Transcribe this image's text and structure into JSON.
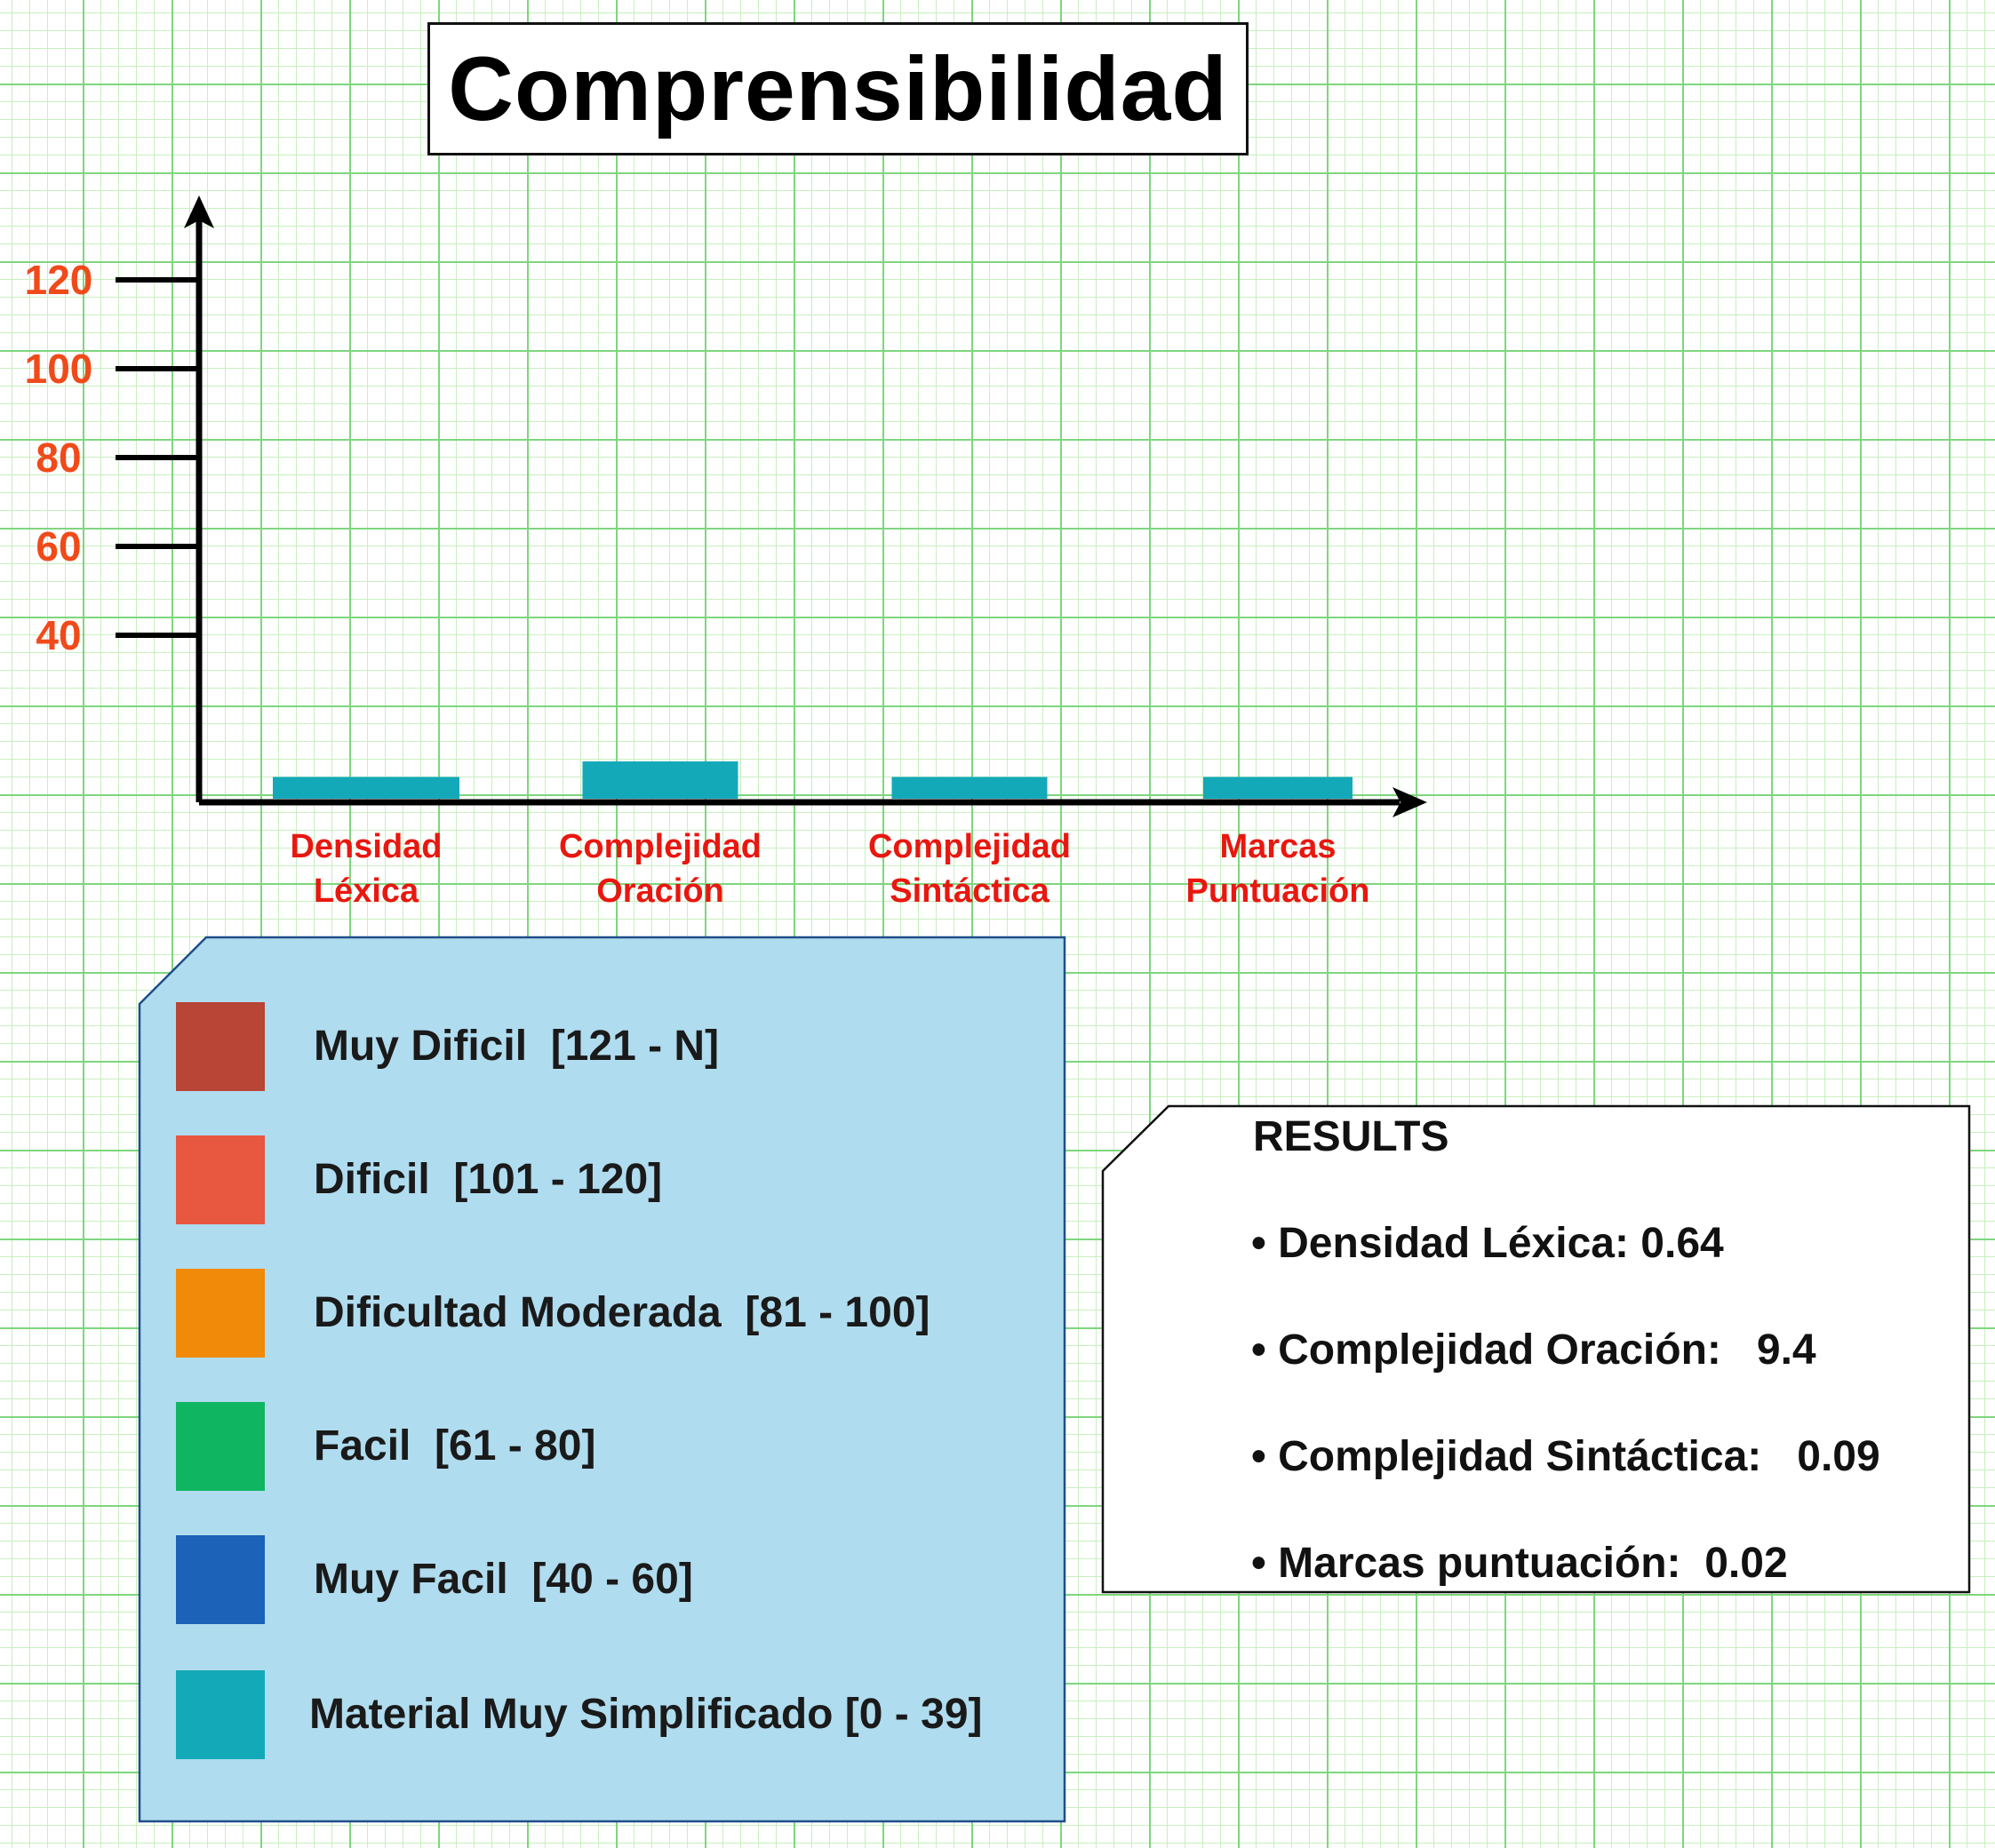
{
  "title": "Comprensibilidad",
  "chart_data": {
    "type": "bar",
    "title": "Comprensibilidad",
    "y_ticks": [
      40,
      60,
      80,
      100,
      120
    ],
    "ylim": [
      0,
      130
    ],
    "categories": [
      {
        "line1": "Densidad",
        "line2": "Léxica"
      },
      {
        "line1": "Complejidad",
        "line2": "Oración"
      },
      {
        "line1": "Complejidad",
        "line2": "Sintáctica"
      },
      {
        "line1": "Marcas",
        "line2": "Puntuación"
      }
    ],
    "values": [
      7,
      12,
      7,
      7
    ],
    "bar_color": "#14a9b8",
    "grid": true
  },
  "legend": {
    "items": [
      {
        "label": "Muy Dificil  [121 - N]",
        "color": "#b84535"
      },
      {
        "label": "Dificil  [101 - 120]",
        "color": "#e8573f"
      },
      {
        "label": "Dificultad Moderada  [81 - 100]",
        "color": "#f08a08"
      },
      {
        "label": "Facil  [61 - 80]",
        "color": "#10b561"
      },
      {
        "label": "Muy Facil  [40 - 60]",
        "color": "#1c62b8"
      },
      {
        "label": "Material Muy Simplificado [0 - 39]",
        "color": "#14a9b8"
      }
    ]
  },
  "results": {
    "title": "RESULTS",
    "items": [
      "• Densidad Léxica: 0.64",
      "• Complejidad Oración:   9.4",
      "• Complejidad Sintáctica:   0.09",
      "• Marcas puntuación:  0.02"
    ]
  }
}
